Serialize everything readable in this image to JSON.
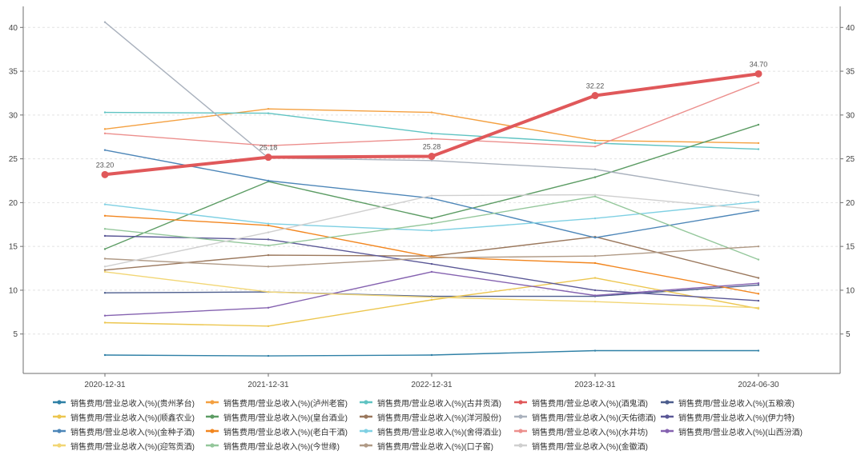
{
  "chart_data": {
    "type": "line",
    "categories": [
      "2020-12-31",
      "2021-12-31",
      "2022-12-31",
      "2023-12-31",
      "2024-06-30"
    ],
    "yticks": [
      5,
      10,
      15,
      20,
      25,
      30,
      35,
      40
    ],
    "ylim": [
      0.5,
      42.4
    ],
    "grid": true,
    "legend_position": "bottom",
    "series": [
      {
        "name": "销售费用/营业总收入(%)(贵州茅台)",
        "color": "#2f80a6",
        "values": [
          2.6,
          2.5,
          2.6,
          3.1,
          3.1
        ]
      },
      {
        "name": "销售费用/营业总收入(%)(泸州老窖)",
        "color": "#f4a040",
        "values": [
          28.4,
          30.7,
          30.3,
          27.1,
          26.8
        ]
      },
      {
        "name": "销售费用/营业总收入(%)(古井贡酒)",
        "color": "#5fc3c2",
        "values": [
          30.3,
          30.2,
          27.9,
          26.8,
          26.1
        ]
      },
      {
        "name": "销售费用/营业总收入(%)(酒鬼酒)",
        "color": "#e0585a",
        "values": [
          23.2,
          25.18,
          25.28,
          32.22,
          34.7
        ],
        "highlighted": true,
        "labels": [
          "23.20",
          "25.18",
          "25.28",
          "32.22",
          "34.70"
        ]
      },
      {
        "name": "销售费用/营业总收入(%)(五粮液)",
        "color": "#4c5d8d",
        "values": [
          9.7,
          9.8,
          9.3,
          9.3,
          10.6
        ]
      },
      {
        "name": "销售费用/营业总收入(%)(顺鑫农业)",
        "color": "#ecc64f",
        "values": [
          6.3,
          5.9,
          8.9,
          11.4,
          7.9
        ]
      },
      {
        "name": "销售费用/营业总收入(%)(皇台酒业)",
        "color": "#5c9c64",
        "values": [
          14.7,
          22.4,
          18.2,
          22.9,
          28.9
        ]
      },
      {
        "name": "销售费用/营业总收入(%)(洋河股份)",
        "color": "#9a775c",
        "values": [
          12.3,
          14.0,
          13.9,
          16.1,
          11.4
        ]
      },
      {
        "name": "销售费用/营业总收入(%)(天佑德酒)",
        "color": "#a9b1bd",
        "values": [
          40.6,
          25.1,
          24.8,
          23.8,
          20.8
        ]
      },
      {
        "name": "销售费用/营业总收入(%)(伊力特)",
        "color": "#5a5796",
        "values": [
          16.2,
          15.8,
          13.0,
          10.0,
          8.8
        ]
      },
      {
        "name": "销售费用/营业总收入(%)(金种子酒)",
        "color": "#4d86b8",
        "values": [
          26.0,
          22.5,
          20.5,
          16.0,
          19.1
        ]
      },
      {
        "name": "销售费用/营业总收入(%)(老白干酒)",
        "color": "#f2861f",
        "values": [
          18.5,
          17.4,
          13.8,
          13.1,
          9.6
        ]
      },
      {
        "name": "销售费用/营业总收入(%)(舍得酒业)",
        "color": "#7fd0e3",
        "values": [
          19.8,
          17.6,
          16.8,
          18.2,
          20.1
        ]
      },
      {
        "name": "销售费用/营业总收入(%)(水井坊)",
        "color": "#ec8f8d",
        "values": [
          27.9,
          26.5,
          27.3,
          26.4,
          33.7
        ]
      },
      {
        "name": "销售费用/营业总收入(%)(山西汾酒)",
        "color": "#8562b0",
        "values": [
          7.1,
          8.0,
          12.1,
          9.4,
          10.8
        ]
      },
      {
        "name": "销售费用/营业总收入(%)(迎驾贡酒)",
        "color": "#f2d675",
        "values": [
          12.1,
          9.8,
          9.2,
          8.7,
          8.0
        ]
      },
      {
        "name": "销售费用/营业总收入(%)(今世缘)",
        "color": "#94c79b",
        "values": [
          17.0,
          15.1,
          17.6,
          20.7,
          13.5
        ]
      },
      {
        "name": "销售费用/营业总收入(%)(口子窖)",
        "color": "#b09a86",
        "values": [
          13.6,
          12.7,
          13.7,
          13.9,
          15.0
        ]
      },
      {
        "name": "销售费用/营业总收入(%)(金徽酒)",
        "color": "#cfcfcf",
        "values": [
          12.7,
          16.6,
          20.8,
          20.9,
          19.2
        ]
      }
    ]
  }
}
